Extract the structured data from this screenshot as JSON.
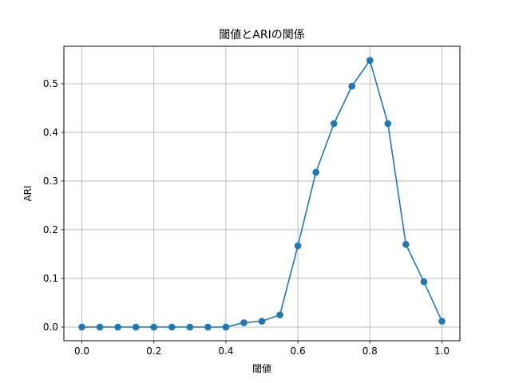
{
  "chart_data": {
    "type": "line",
    "title": "閾値とARIの関係",
    "xlabel": "閾値",
    "ylabel": "ARI",
    "x": [
      0.0,
      0.05,
      0.1,
      0.15,
      0.2,
      0.25,
      0.3,
      0.35,
      0.4,
      0.45,
      0.5,
      0.55,
      0.6,
      0.65,
      0.7,
      0.75,
      0.8,
      0.85,
      0.9,
      0.95,
      1.0
    ],
    "series": [
      {
        "values": [
          0.0,
          0.0,
          0.0,
          0.0,
          0.0,
          0.0,
          0.0,
          0.0,
          0.0,
          0.009,
          0.012,
          0.025,
          0.167,
          0.318,
          0.418,
          0.495,
          0.548,
          0.418,
          0.17,
          0.093,
          0.012
        ],
        "color": "#1f77b4",
        "marker": "circle"
      }
    ],
    "xlim": [
      -0.05,
      1.05
    ],
    "ylim": [
      -0.028,
      0.577
    ],
    "xticks": [
      "0.0",
      "0.2",
      "0.4",
      "0.6",
      "0.8",
      "1.0"
    ],
    "yticks": [
      "0.0",
      "0.1",
      "0.2",
      "0.3",
      "0.4",
      "0.5"
    ],
    "grid": true,
    "legend": null
  }
}
